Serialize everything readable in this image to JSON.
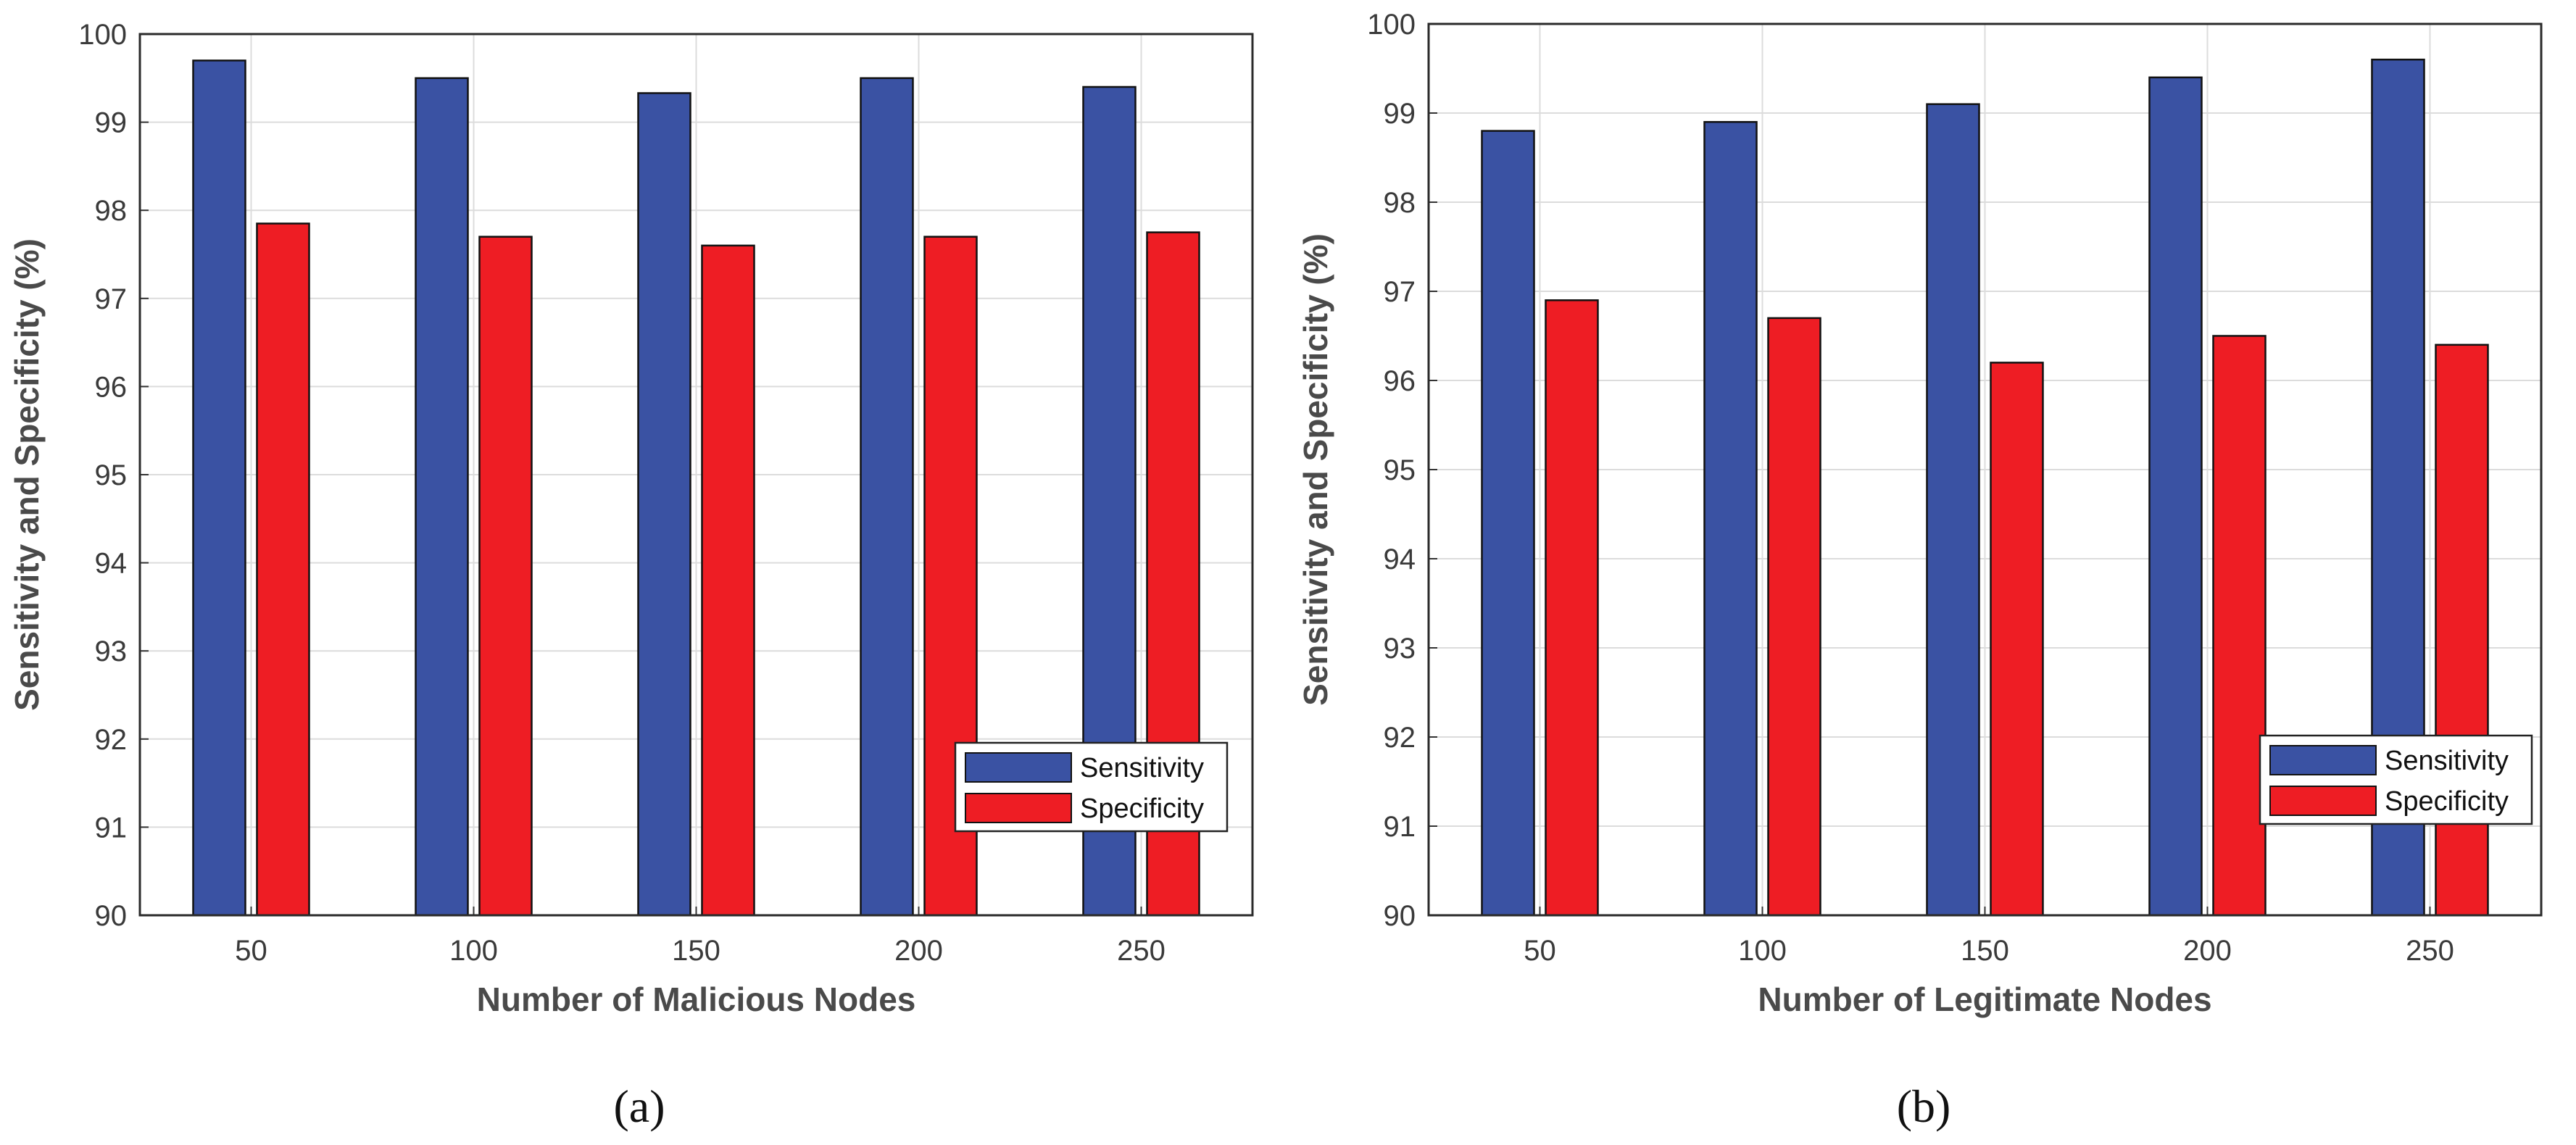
{
  "chart_data": [
    {
      "type": "bar",
      "id": "a",
      "caption": "(a)",
      "categories": [
        "50",
        "100",
        "150",
        "200",
        "250"
      ],
      "series": [
        {
          "name": "Sensitivity",
          "color": "#3a52a3",
          "values": [
            99.7,
            99.5,
            99.33,
            99.5,
            99.4
          ]
        },
        {
          "name": "Specificity",
          "color": "#ee1d24",
          "values": [
            97.85,
            97.7,
            97.6,
            97.7,
            97.75
          ]
        }
      ],
      "xlabel": "Number of Malicious Nodes",
      "ylabel": "Sensitivity and Specificity (%)",
      "ylim": [
        90,
        100
      ],
      "yticks": [
        90,
        91,
        92,
        93,
        94,
        95,
        96,
        97,
        98,
        99,
        100
      ],
      "grid": true,
      "legend_position": "bottom-right"
    },
    {
      "type": "bar",
      "id": "b",
      "caption": "(b)",
      "categories": [
        "50",
        "100",
        "150",
        "200",
        "250"
      ],
      "series": [
        {
          "name": "Sensitivity",
          "color": "#3a52a3",
          "values": [
            98.8,
            98.9,
            99.1,
            99.4,
            99.6
          ]
        },
        {
          "name": "Specificity",
          "color": "#ee1d24",
          "values": [
            96.9,
            96.7,
            96.2,
            96.5,
            96.4
          ]
        }
      ],
      "xlabel": "Number of Legitimate Nodes",
      "ylabel": "Sensitivity and Specificity (%)",
      "ylim": [
        90,
        100
      ],
      "yticks": [
        90,
        91,
        92,
        93,
        94,
        95,
        96,
        97,
        98,
        99,
        100
      ],
      "grid": true,
      "legend_position": "bottom-right"
    }
  ]
}
